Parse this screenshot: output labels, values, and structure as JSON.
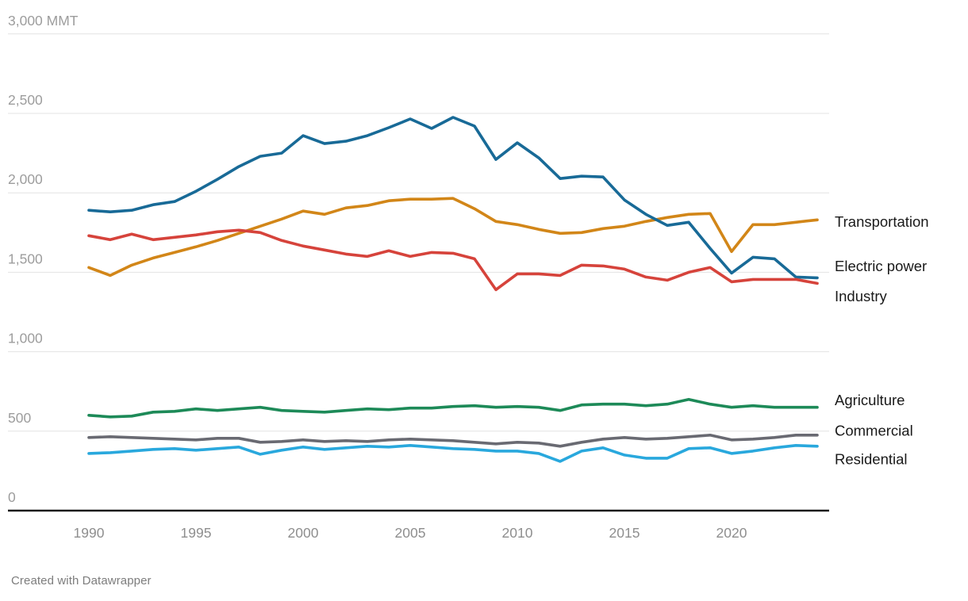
{
  "chart_data": {
    "type": "line",
    "title": "",
    "unit_label": "MMT",
    "x": [
      1990,
      1991,
      1992,
      1993,
      1994,
      1995,
      1996,
      1997,
      1998,
      1999,
      2000,
      2001,
      2002,
      2003,
      2004,
      2005,
      2006,
      2007,
      2008,
      2009,
      2010,
      2011,
      2012,
      2013,
      2014,
      2015,
      2016,
      2017,
      2018,
      2019,
      2020,
      2021,
      2022,
      2023,
      2024
    ],
    "series": [
      {
        "name": "Transportation",
        "color": "#d28618",
        "values": [
          1530,
          1480,
          1545,
          1590,
          1625,
          1660,
          1700,
          1745,
          1790,
          1835,
          1885,
          1865,
          1905,
          1920,
          1950,
          1960,
          1960,
          1965,
          1900,
          1820,
          1800,
          1770,
          1745,
          1750,
          1775,
          1790,
          1820,
          1845,
          1865,
          1870,
          1630,
          1800,
          1800,
          1815,
          1830
        ]
      },
      {
        "name": "Electric power",
        "color": "#186a97",
        "values": [
          1890,
          1880,
          1890,
          1925,
          1945,
          2010,
          2085,
          2165,
          2230,
          2250,
          2360,
          2310,
          2325,
          2360,
          2410,
          2465,
          2405,
          2475,
          2420,
          2210,
          2315,
          2220,
          2090,
          2105,
          2100,
          1955,
          1865,
          1795,
          1815,
          1650,
          1495,
          1595,
          1585,
          1470,
          1465
        ]
      },
      {
        "name": "Industry",
        "color": "#d6433b",
        "values": [
          1730,
          1705,
          1740,
          1705,
          1720,
          1735,
          1755,
          1765,
          1750,
          1700,
          1665,
          1640,
          1615,
          1600,
          1635,
          1600,
          1625,
          1620,
          1585,
          1390,
          1490,
          1490,
          1480,
          1545,
          1540,
          1520,
          1470,
          1450,
          1500,
          1530,
          1440,
          1455,
          1455,
          1455,
          1430
        ]
      },
      {
        "name": "Agriculture",
        "color": "#1d8a58",
        "values": [
          600,
          590,
          595,
          620,
          625,
          640,
          630,
          640,
          650,
          630,
          625,
          620,
          630,
          640,
          635,
          645,
          645,
          655,
          660,
          650,
          655,
          650,
          630,
          665,
          670,
          670,
          660,
          670,
          700,
          670,
          650,
          660,
          650,
          650,
          650
        ]
      },
      {
        "name": "Commercial",
        "color": "#696a72",
        "values": [
          460,
          465,
          460,
          455,
          450,
          445,
          455,
          455,
          430,
          435,
          445,
          435,
          440,
          435,
          445,
          450,
          445,
          440,
          430,
          420,
          430,
          425,
          405,
          430,
          450,
          460,
          450,
          455,
          465,
          475,
          445,
          450,
          460,
          475,
          475
        ]
      },
      {
        "name": "Residential",
        "color": "#29a8dd",
        "values": [
          360,
          365,
          375,
          385,
          390,
          380,
          390,
          400,
          355,
          380,
          400,
          385,
          395,
          405,
          400,
          410,
          400,
          390,
          385,
          375,
          375,
          360,
          310,
          375,
          395,
          350,
          330,
          330,
          390,
          395,
          360,
          375,
          395,
          410,
          405
        ]
      }
    ],
    "y_axis": {
      "range": [
        0,
        3000
      ],
      "grid": true,
      "ticks": [
        {
          "value": 3000,
          "label": "3,000 MMT"
        },
        {
          "value": 2500,
          "label": "2,500"
        },
        {
          "value": 2000,
          "label": "2,000"
        },
        {
          "value": 1500,
          "label": "1,500"
        },
        {
          "value": 1000,
          "label": "1,000"
        },
        {
          "value": 500,
          "label": "500"
        },
        {
          "value": 0,
          "label": "0"
        }
      ]
    },
    "x_axis": {
      "ticks": [
        "1990",
        "1995",
        "2000",
        "2005",
        "2010",
        "2015",
        "2020"
      ],
      "tick_values": [
        1990,
        1995,
        2000,
        2005,
        2010,
        2015,
        2020
      ]
    },
    "legend_position": "right-edge-direct-labels"
  },
  "colors": {
    "background": "#ffffff",
    "gridline": "#e3e3e3",
    "axis_line": "#191919",
    "y_tick_label": "#9d9d9d",
    "x_tick_label": "#8e8e8e",
    "series_label": "#1a1a1a",
    "attribution": "#7d7d7d"
  },
  "footer": {
    "attribution": "Created with Datawrapper"
  }
}
